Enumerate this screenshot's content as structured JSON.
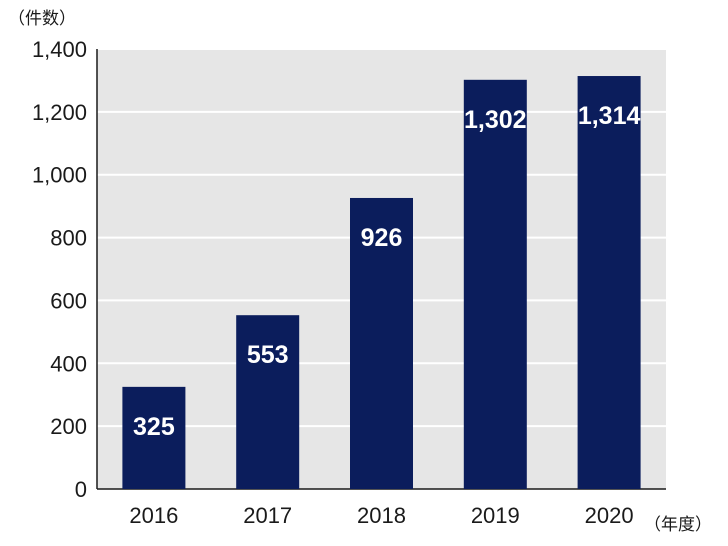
{
  "chart_data": {
    "type": "bar",
    "categories": [
      "2016",
      "2017",
      "2018",
      "2019",
      "2020"
    ],
    "values": [
      325,
      553,
      926,
      1302,
      1314
    ],
    "value_labels": [
      "325",
      "553",
      "926",
      "1,302",
      "1,314"
    ],
    "ylabel": "（件数）",
    "xlabel": "（年度）",
    "ylim": [
      0,
      1400
    ],
    "yticks": [
      0,
      200,
      400,
      600,
      800,
      1000,
      1200,
      1400
    ],
    "ytick_labels": [
      "0",
      "200",
      "400",
      "600",
      "800",
      "1,000",
      "1,200",
      "1,400"
    ],
    "grid": true,
    "colors": {
      "bar": "#0b1d5c",
      "plot_background": "#e6e6e6",
      "grid": "#ffffff"
    }
  }
}
